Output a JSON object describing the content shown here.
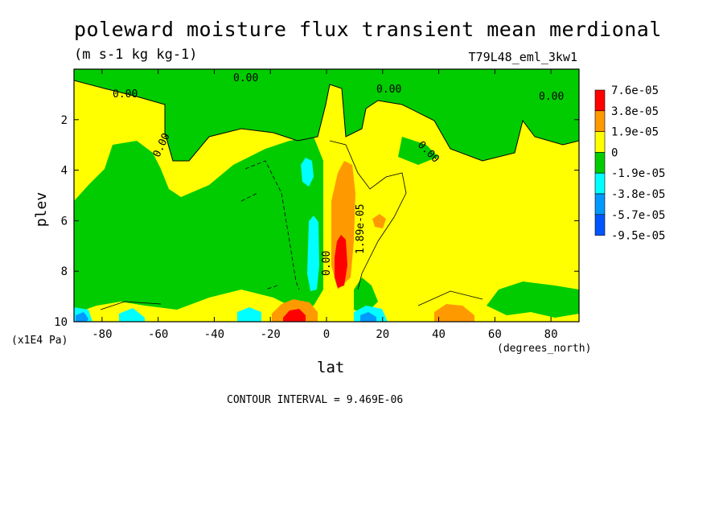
{
  "chart_data": {
    "type": "heatmap",
    "title": "poleward moisture flux transient mean merdional",
    "units": "(m s-1 kg kg-1)",
    "run_label": "T79L48_eml_3kw1",
    "xlabel": "lat",
    "ylabel": "plev",
    "x_unit": "(degrees_north)",
    "y_unit": "(x1E4 Pa)",
    "xlim": [
      -90,
      90
    ],
    "ylim": [
      0,
      10
    ],
    "y_inverted": true,
    "x_ticks": [
      -80,
      -60,
      -40,
      -20,
      0,
      20,
      40,
      60,
      80
    ],
    "y_ticks": [
      2,
      4,
      6,
      8,
      10
    ],
    "contour_interval_text": "CONTOUR INTERVAL = 9.469E-06",
    "contour_labels": [
      "0.00",
      "0.00",
      "0.00",
      "0.00",
      "0.00",
      "0.00",
      "0.00",
      "1.89e-05"
    ],
    "legend": {
      "levels": [
        "7.6e-05",
        "3.8e-05",
        "1.9e-05",
        "0",
        "-1.9e-05",
        "-3.8e-05",
        "-5.7e-05",
        "-9.5e-05"
      ],
      "colors": [
        "#ff0000",
        "#ff9900",
        "#ffff00",
        "#00cc00",
        "#00ffff",
        "#0099ff",
        "#0055ff"
      ]
    },
    "colors": {
      "background": "#ffff00",
      "near_zero_negative": "#00cc00"
    }
  }
}
